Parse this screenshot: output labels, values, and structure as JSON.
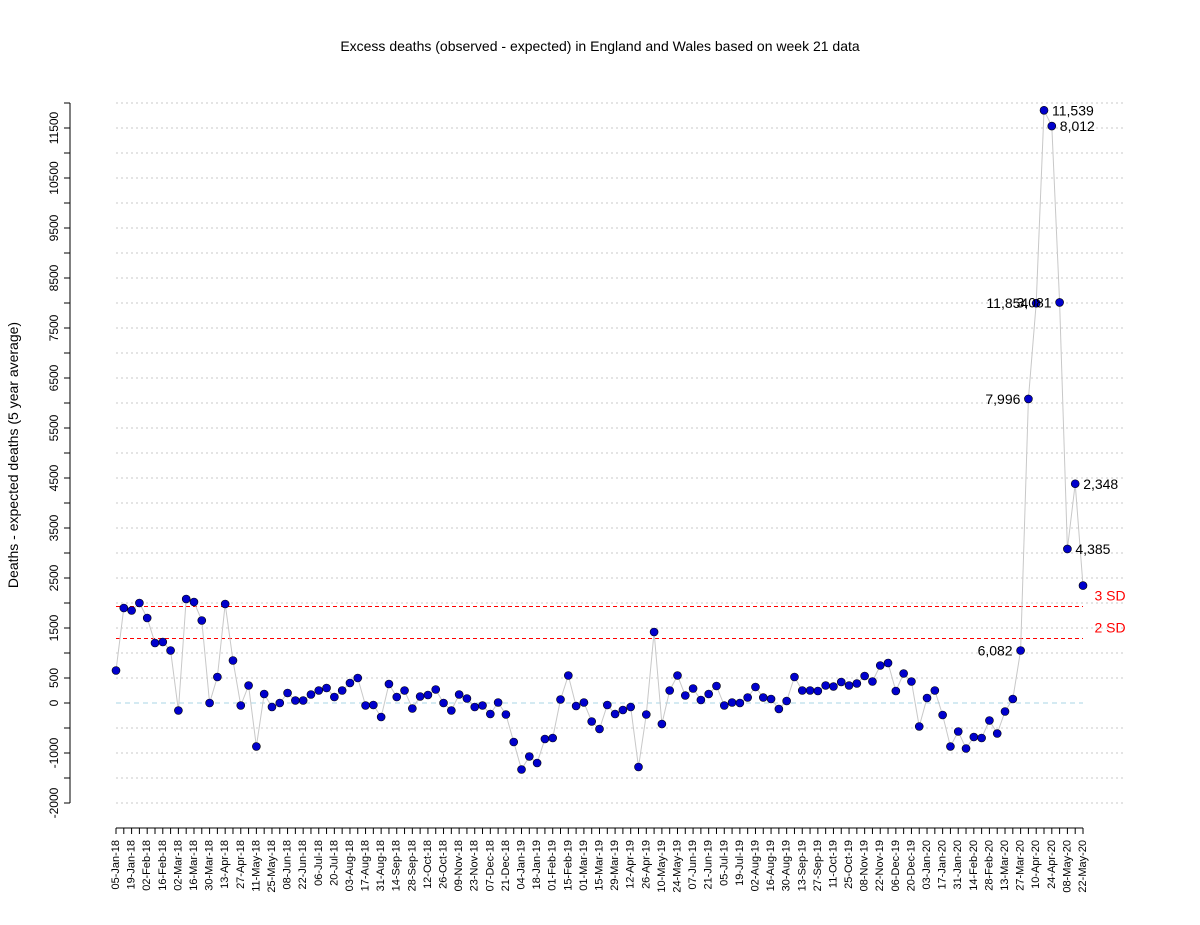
{
  "chart_data": {
    "type": "line",
    "title": "Excess deaths (observed - expected) in England and Wales based on week 21 data",
    "xlabel": "",
    "ylabel": "Deaths - expected deaths (5 year average)",
    "ylim": [
      -2000,
      12000
    ],
    "yticks": [
      -2000,
      -1000,
      0,
      500,
      1500,
      2500,
      3500,
      4500,
      5500,
      6500,
      7500,
      8500,
      9500,
      10500,
      11500
    ],
    "y_gridlines": [
      -2000,
      -1500,
      -1000,
      -500,
      500,
      1000,
      1500,
      2000,
      2500,
      3000,
      3500,
      4000,
      4500,
      5000,
      5500,
      6000,
      6500,
      7000,
      7500,
      8000,
      8500,
      9000,
      9500,
      10000,
      10500,
      11000,
      11500,
      12000
    ],
    "grid": true,
    "x_tick_labels": [
      "05-Jan-18",
      "19-Jan-18",
      "02-Feb-18",
      "16-Feb-18",
      "02-Mar-18",
      "16-Mar-18",
      "30-Mar-18",
      "13-Apr-18",
      "27-Apr-18",
      "11-May-18",
      "25-May-18",
      "08-Jun-18",
      "22-Jun-18",
      "06-Jul-18",
      "20-Jul-18",
      "03-Aug-18",
      "17-Aug-18",
      "31-Aug-18",
      "14-Sep-18",
      "28-Sep-18",
      "12-Oct-18",
      "26-Oct-18",
      "09-Nov-18",
      "23-Nov-18",
      "07-Dec-18",
      "21-Dec-18",
      "04-Jan-19",
      "18-Jan-19",
      "01-Feb-19",
      "15-Feb-19",
      "01-Mar-19",
      "15-Mar-19",
      "29-Mar-19",
      "12-Apr-19",
      "26-Apr-19",
      "10-May-19",
      "24-May-19",
      "07-Jun-19",
      "21-Jun-19",
      "05-Jul-19",
      "19-Jul-19",
      "02-Aug-19",
      "16-Aug-19",
      "30-Aug-19",
      "13-Sep-19",
      "27-Sep-19",
      "11-Oct-19",
      "25-Oct-19",
      "08-Nov-19",
      "22-Nov-19",
      "06-Dec-19",
      "20-Dec-19",
      "03-Jan-20",
      "17-Jan-20",
      "31-Jan-20",
      "14-Feb-20",
      "28-Feb-20",
      "13-Mar-20",
      "27-Mar-20",
      "10-Apr-20",
      "24-Apr-20",
      "08-May-20",
      "22-May-20"
    ],
    "x_tick_every": 2,
    "series": [
      {
        "color": "#0000cc",
        "values": [
          650,
          1900,
          1850,
          2000,
          1700,
          1200,
          1220,
          1050,
          -150,
          2080,
          2020,
          1650,
          0,
          520,
          1980,
          850,
          -50,
          350,
          -870,
          180,
          -80,
          0,
          200,
          50,
          50,
          170,
          250,
          300,
          120,
          250,
          400,
          500,
          -50,
          -40,
          -280,
          380,
          120,
          250,
          -110,
          130,
          160,
          270,
          0,
          -150,
          170,
          90,
          -80,
          -50,
          -220,
          10,
          -230,
          -780,
          -1330,
          -1070,
          -1200,
          -720,
          -700,
          70,
          550,
          -60,
          10,
          -370,
          -520,
          -40,
          -220,
          -140,
          -80,
          -1280,
          -230,
          1420,
          -420,
          250,
          550,
          150,
          290,
          60,
          180,
          340,
          -50,
          10,
          0,
          110,
          320,
          110,
          80,
          -120,
          40,
          520,
          250,
          250,
          240,
          350,
          330,
          420,
          350,
          390,
          540,
          430,
          750,
          800,
          240,
          590,
          430,
          -470,
          100,
          250,
          -240,
          -870,
          -570,
          -910,
          -680,
          -700,
          -350,
          -610,
          -170,
          80,
          1050,
          6082,
          7996,
          11854,
          11539,
          8012,
          3081,
          4385,
          2348
        ],
        "labels": {
          "116": "6,082",
          "117": "7,996",
          "118": "11,854",
          "119": "11,539",
          "120": "8,012",
          "121": "3,081",
          "122": "4,385",
          "123": "2,348"
        },
        "label_side": {
          "116": "left",
          "117": "left",
          "118": "left",
          "119": "right",
          "120": "right",
          "121": "left",
          "122": "right",
          "123": "right"
        }
      }
    ],
    "line_color": "#c8c8c8",
    "reference_lines": [
      {
        "label": "3 SD",
        "value": 1930,
        "color": "#ff0000"
      },
      {
        "label": "2 SD",
        "value": 1290,
        "color": "#ff0000"
      },
      {
        "label": "",
        "value": 0,
        "color": "#a8d4e6"
      }
    ]
  }
}
